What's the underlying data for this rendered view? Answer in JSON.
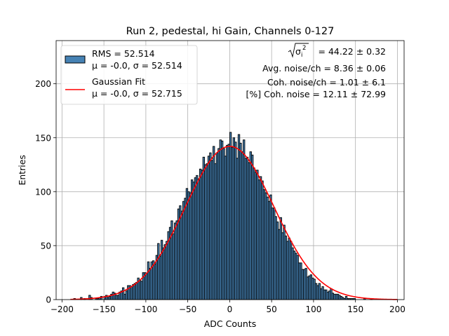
{
  "chart_data": {
    "type": "bar",
    "title": "Run 2, pedestal, hi Gain, Channels 0-127",
    "xlabel": "ADC Counts",
    "ylabel": "Entries",
    "xlim": [
      -207,
      208
    ],
    "ylim": [
      0,
      240
    ],
    "xticks": [
      -200,
      -150,
      -100,
      -50,
      0,
      50,
      100,
      150,
      200
    ],
    "yticks": [
      0,
      50,
      100,
      150,
      200
    ],
    "xtick_labels": [
      "−200",
      "−150",
      "−100",
      "−50",
      "0",
      "50",
      "100",
      "150",
      "200"
    ],
    "ytick_labels": [
      "0",
      "50",
      "100",
      "150",
      "200"
    ],
    "grid": true,
    "legend_position": "top-left",
    "bar_fill": "#4682b4",
    "bar_edge": "#000000",
    "fit_color": "#ff0000",
    "legend": [
      {
        "line1": "RMS = 52.514",
        "line2": "μ = -0.0, σ = 52.514",
        "marker": "patch"
      },
      {
        "line1": "Gaussian Fit",
        "line2": "μ = -0.0, σ = 52.715",
        "marker": "line"
      }
    ],
    "annotations": [
      {
        "label": "σ",
        "sub": "i",
        "sup": "2",
        "text": " = 44.22 ± 0.32"
      },
      {
        "text": "Avg. noise/ch = 8.36 ± 0.06"
      },
      {
        "text": "Coh. noise/ch = 1.01 ± 6.1"
      },
      {
        "text": "[%] Coh. noise = 12.11 ± 72.99"
      }
    ],
    "histogram": {
      "bin_start": -190,
      "bin_width": 2,
      "values": [
        0,
        0,
        1,
        0,
        0,
        0,
        2,
        0,
        1,
        0,
        0,
        4,
        2,
        0,
        0,
        1,
        1,
        2,
        3,
        0,
        3,
        4,
        2,
        3,
        5,
        7,
        6,
        4,
        4,
        7,
        8,
        11,
        5,
        8,
        13,
        13,
        12,
        14,
        15,
        16,
        20,
        18,
        17,
        25,
        25,
        24,
        35,
        29,
        35,
        36,
        33,
        41,
        52,
        40,
        55,
        48,
        51,
        54,
        63,
        67,
        73,
        61,
        71,
        73,
        84,
        87,
        82,
        91,
        94,
        103,
        100,
        99,
        111,
        109,
        113,
        115,
        112,
        121,
        120,
        132,
        125,
        126,
        133,
        136,
        129,
        142,
        126,
        136,
        140,
        148,
        147,
        140,
        133,
        143,
        144,
        155,
        141,
        150,
        146,
        131,
        153,
        145,
        137,
        148,
        131,
        132,
        127,
        137,
        134,
        122,
        118,
        120,
        111,
        114,
        110,
        102,
        99,
        95,
        91,
        97,
        85,
        85,
        77,
        72,
        65,
        76,
        62,
        69,
        59,
        54,
        57,
        54,
        48,
        45,
        43,
        41,
        34,
        34,
        28,
        28,
        29,
        21,
        22,
        23,
        20,
        19,
        15,
        13,
        15,
        10,
        12,
        9,
        9,
        7,
        8,
        10,
        6,
        5,
        5,
        5,
        4,
        3,
        2,
        1,
        3,
        1,
        1,
        1,
        1,
        1,
        0,
        0,
        0,
        0,
        0,
        1,
        0,
        0,
        0,
        1,
        0,
        0,
        0,
        0,
        0,
        0,
        0,
        0,
        0,
        0
      ]
    },
    "gaussian_fit": {
      "mu": -0.0,
      "sigma": 52.715,
      "amplitude": 142,
      "x_range": [
        -190,
        200
      ]
    }
  }
}
